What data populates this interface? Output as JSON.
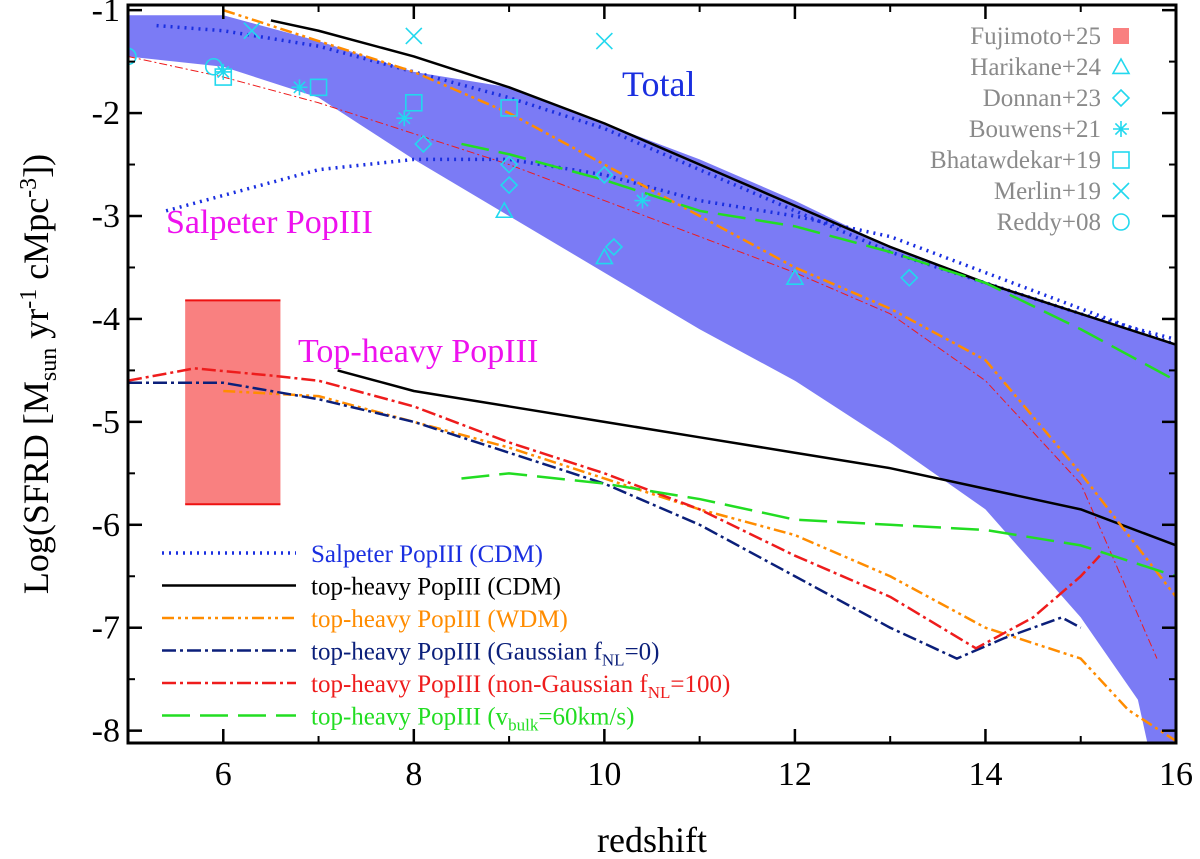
{
  "colors": {
    "band": "#7b7bf5",
    "salpeter": "#1a2fe0",
    "cdm": "#000000",
    "wdm": "#ff8c00",
    "gaussian": "#0b1f7a",
    "nongauss": "#ee1c1c",
    "vbulk": "#22dd22",
    "obs": "#22d8ee",
    "fujimoto": "#f98080",
    "fujimoto_edge": "#ee1111",
    "magenta": "#ee11ee",
    "total": "#1a2fe0",
    "obs_legend_text": "#8a8a8a"
  },
  "chart_data": {
    "type": "line",
    "xlabel": "redshift",
    "ylabel": {
      "base": "Log(SFRD [M",
      "sub1": "sun",
      "mid": " yr",
      "sup1": "-1",
      "mid2": " cMpc",
      "sup2": "-3",
      "end": "])"
    },
    "xlim": [
      5,
      16
    ],
    "ylim": [
      -8.12,
      -0.95
    ],
    "xticks": [
      6,
      8,
      10,
      12,
      14,
      16
    ],
    "yticks": [
      -1,
      -2,
      -3,
      -4,
      -5,
      -6,
      -7,
      -8
    ],
    "annotations": {
      "total": "Total",
      "salpeter": "Salpeter PopIII",
      "topheavy": "Top-heavy PopIII"
    },
    "band_upper": [
      [
        5,
        -1.05
      ],
      [
        6,
        -1.05
      ],
      [
        7,
        -1.3
      ],
      [
        8,
        -1.6
      ],
      [
        9,
        -1.75
      ],
      [
        10,
        -2.1
      ],
      [
        11,
        -2.45
      ],
      [
        12,
        -2.85
      ],
      [
        13,
        -3.3
      ],
      [
        14,
        -3.65
      ],
      [
        15,
        -3.95
      ],
      [
        16,
        -4.25
      ]
    ],
    "band_lower": [
      [
        5,
        -1.45
      ],
      [
        6,
        -1.55
      ],
      [
        7,
        -1.85
      ],
      [
        8,
        -2.45
      ],
      [
        9,
        -3.0
      ],
      [
        10,
        -3.55
      ],
      [
        11,
        -4.1
      ],
      [
        12,
        -4.6
      ],
      [
        13,
        -5.2
      ],
      [
        14,
        -5.85
      ],
      [
        15,
        -6.9
      ],
      [
        15.6,
        -7.7
      ],
      [
        15.7,
        -8.12
      ]
    ],
    "series": [
      {
        "name": "Salpeter PopIII (CDM)",
        "key": "salpeter",
        "color": "salpeter",
        "dash": "2,5",
        "width": 3.5,
        "points": [
          [
            5.3,
            -1.15
          ],
          [
            6,
            -1.2
          ],
          [
            7,
            -1.35
          ],
          [
            8,
            -1.6
          ],
          [
            9,
            -1.85
          ],
          [
            10,
            -2.15
          ],
          [
            11,
            -2.55
          ],
          [
            12,
            -2.95
          ],
          [
            13,
            -3.35
          ],
          [
            14,
            -3.65
          ],
          [
            15,
            -3.95
          ],
          [
            16,
            -4.2
          ]
        ]
      },
      {
        "name": "Salpeter PopIII (CDM) low",
        "key": "salpeter_low",
        "color": "salpeter",
        "dash": "2,5",
        "width": 3.5,
        "hide_legend": true,
        "points": [
          [
            5.4,
            -2.95
          ],
          [
            6,
            -2.8
          ],
          [
            7,
            -2.55
          ],
          [
            8,
            -2.45
          ],
          [
            9,
            -2.45
          ],
          [
            10,
            -2.6
          ],
          [
            11,
            -2.85
          ],
          [
            12,
            -3.0
          ],
          [
            13,
            -3.2
          ],
          [
            14,
            -3.55
          ],
          [
            15,
            -3.9
          ],
          [
            16,
            -4.25
          ]
        ]
      },
      {
        "name": "top-heavy PopIII (CDM)",
        "key": "cdm",
        "color": "cdm",
        "dash": "",
        "width": 2.5,
        "points": [
          [
            6.5,
            -1.1
          ],
          [
            7,
            -1.2
          ],
          [
            8,
            -1.45
          ],
          [
            9,
            -1.75
          ],
          [
            10,
            -2.1
          ],
          [
            11,
            -2.5
          ],
          [
            12,
            -2.9
          ],
          [
            13,
            -3.3
          ],
          [
            14,
            -3.65
          ],
          [
            15,
            -3.95
          ],
          [
            16,
            -4.25
          ]
        ]
      },
      {
        "name": "top-heavy PopIII (CDM) low",
        "key": "cdm_low",
        "color": "cdm",
        "dash": "",
        "width": 2.5,
        "hide_legend": true,
        "points": [
          [
            7.2,
            -4.5
          ],
          [
            8,
            -4.7
          ],
          [
            9,
            -4.85
          ],
          [
            10,
            -5.0
          ],
          [
            11,
            -5.15
          ],
          [
            12,
            -5.3
          ],
          [
            13,
            -5.45
          ],
          [
            14,
            -5.65
          ],
          [
            15,
            -5.85
          ],
          [
            16,
            -6.2
          ]
        ]
      },
      {
        "name": "top-heavy PopIII (WDM)",
        "key": "wdm",
        "color": "wdm",
        "dash": "12,4,3,4,3,4",
        "width": 2.5,
        "points": [
          [
            6,
            -1.0
          ],
          [
            7,
            -1.3
          ],
          [
            8,
            -1.6
          ],
          [
            9,
            -2.0
          ],
          [
            10,
            -2.5
          ],
          [
            11,
            -3.0
          ],
          [
            12,
            -3.5
          ],
          [
            13,
            -3.9
          ],
          [
            14,
            -4.4
          ],
          [
            15,
            -5.5
          ],
          [
            16,
            -6.7
          ]
        ]
      },
      {
        "name": "top-heavy PopIII (WDM) low",
        "key": "wdm_low",
        "color": "wdm",
        "dash": "12,4,3,4,3,4",
        "width": 2.5,
        "hide_legend": true,
        "points": [
          [
            6,
            -4.7
          ],
          [
            7,
            -4.75
          ],
          [
            8,
            -5.0
          ],
          [
            9,
            -5.25
          ],
          [
            10,
            -5.55
          ],
          [
            11,
            -5.85
          ],
          [
            12,
            -6.1
          ],
          [
            13,
            -6.5
          ],
          [
            14,
            -7.0
          ],
          [
            15,
            -7.3
          ],
          [
            15.5,
            -7.8
          ],
          [
            16,
            -8.1
          ]
        ]
      },
      {
        "name": "top-heavy PopIII (Gaussian f",
        "sub": "NL",
        "tail": "=0)",
        "key": "gaussian",
        "color": "gaussian",
        "dash": "14,4,3,4",
        "width": 2.5,
        "points": [
          [
            5,
            -4.62
          ],
          [
            6,
            -4.62
          ],
          [
            7,
            -4.78
          ],
          [
            8,
            -5.0
          ],
          [
            9,
            -5.3
          ],
          [
            10,
            -5.6
          ],
          [
            11,
            -6.0
          ],
          [
            12,
            -6.5
          ],
          [
            13,
            -7.0
          ],
          [
            13.7,
            -7.3
          ],
          [
            14.2,
            -7.1
          ],
          [
            14.8,
            -6.9
          ],
          [
            15.0,
            -7.0
          ]
        ]
      },
      {
        "name": "top-heavy PopIII (non-Gaussian f",
        "sub": "NL",
        "tail": "=100)",
        "key": "nongauss",
        "color": "nongauss",
        "dash": "14,4,3,4",
        "width": 2.5,
        "points": [
          [
            5,
            -4.6
          ],
          [
            5.7,
            -4.48
          ],
          [
            6.5,
            -4.55
          ],
          [
            7,
            -4.6
          ],
          [
            8,
            -4.85
          ],
          [
            9,
            -5.2
          ],
          [
            10,
            -5.5
          ],
          [
            11,
            -5.85
          ],
          [
            12,
            -6.3
          ],
          [
            13,
            -6.7
          ],
          [
            13.9,
            -7.2
          ],
          [
            14.5,
            -6.9
          ],
          [
            15.0,
            -6.5
          ],
          [
            15.2,
            -6.3
          ]
        ]
      },
      {
        "name": "top-heavy PopIII (v",
        "sub": "bulk",
        "tail": "=60km/s)",
        "key": "vbulk",
        "color": "vbulk",
        "dash": "28,10",
        "width": 2.5,
        "points": [
          [
            8.5,
            -2.3
          ],
          [
            9,
            -2.4
          ],
          [
            10,
            -2.65
          ],
          [
            11,
            -2.95
          ],
          [
            12,
            -3.1
          ],
          [
            13,
            -3.35
          ],
          [
            14,
            -3.65
          ],
          [
            15,
            -4.1
          ],
          [
            16,
            -4.6
          ]
        ]
      },
      {
        "name": "top-heavy PopIII (v_bulk) low",
        "key": "vbulk_low",
        "color": "vbulk",
        "dash": "28,10",
        "width": 2.5,
        "hide_legend": true,
        "points": [
          [
            8.5,
            -5.55
          ],
          [
            9,
            -5.5
          ],
          [
            10,
            -5.6
          ],
          [
            11,
            -5.75
          ],
          [
            12,
            -5.95
          ],
          [
            13,
            -6.0
          ],
          [
            14,
            -6.05
          ],
          [
            15,
            -6.2
          ],
          [
            16,
            -6.5
          ]
        ]
      }
    ],
    "thin_line": {
      "points": [
        [
          5,
          -1.45
        ],
        [
          6,
          -1.65
        ],
        [
          7,
          -1.9
        ],
        [
          8,
          -2.2
        ],
        [
          9,
          -2.5
        ],
        [
          10,
          -2.85
        ],
        [
          11,
          -3.2
        ],
        [
          12,
          -3.55
        ],
        [
          13,
          -3.95
        ],
        [
          14,
          -4.6
        ],
        [
          15,
          -5.6
        ],
        [
          15.8,
          -7.3
        ]
      ]
    },
    "fujimoto_box": {
      "x0": 5.6,
      "x1": 6.6,
      "y0": -5.8,
      "y1": -3.82
    },
    "observations": [
      {
        "label": "Fujimoto+25",
        "marker": "filled-square"
      },
      {
        "label": "Harikane+24",
        "marker": "triangle",
        "points": [
          [
            8.95,
            -2.95
          ],
          [
            10,
            -3.4
          ],
          [
            12,
            -3.6
          ]
        ]
      },
      {
        "label": "Donnan+23",
        "marker": "diamond",
        "points": [
          [
            8.1,
            -2.3
          ],
          [
            9,
            -2.5
          ],
          [
            9,
            -2.7
          ],
          [
            10,
            -2.6
          ],
          [
            10.1,
            -3.3
          ],
          [
            13.2,
            -3.6
          ]
        ]
      },
      {
        "label": "Bouwens+21",
        "marker": "asterisk",
        "points": [
          [
            6,
            -1.6
          ],
          [
            6.8,
            -1.75
          ],
          [
            7.9,
            -2.05
          ],
          [
            10.4,
            -2.85
          ]
        ]
      },
      {
        "label": "Bhatawdekar+19",
        "marker": "square",
        "points": [
          [
            6,
            -1.65
          ],
          [
            7,
            -1.75
          ],
          [
            8,
            -1.9
          ],
          [
            9,
            -1.95
          ]
        ]
      },
      {
        "label": "Merlin+19",
        "marker": "cross",
        "points": [
          [
            6.3,
            -1.2
          ],
          [
            8,
            -1.25
          ],
          [
            10,
            -1.3
          ]
        ]
      },
      {
        "label": "Reddy+08",
        "marker": "circle",
        "points": [
          [
            5,
            -1.45
          ],
          [
            5.9,
            -1.55
          ]
        ]
      }
    ]
  }
}
